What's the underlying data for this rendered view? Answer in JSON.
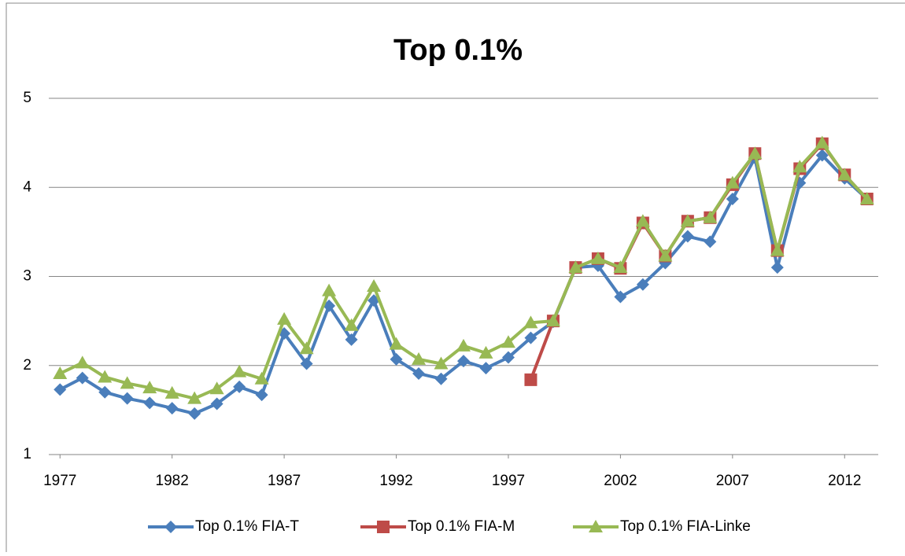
{
  "chart_data": {
    "type": "line",
    "title": "Top 0.1%",
    "x": [
      1977,
      1978,
      1979,
      1980,
      1981,
      1982,
      1983,
      1984,
      1985,
      1986,
      1987,
      1988,
      1989,
      1990,
      1991,
      1992,
      1993,
      1994,
      1995,
      1996,
      1997,
      1998,
      1999,
      2000,
      2001,
      2002,
      2003,
      2004,
      2005,
      2006,
      2007,
      2008,
      2009,
      2010,
      2011,
      2012,
      2013
    ],
    "xlim": [
      1976.5,
      2013.5
    ],
    "xticks": [
      1977,
      1982,
      1987,
      1992,
      1997,
      2002,
      2007,
      2012
    ],
    "ylim": [
      1,
      5
    ],
    "yticks": [
      1,
      2,
      3,
      4,
      5
    ],
    "grid": true,
    "legend": "bottom",
    "series": [
      {
        "name": "Top 0.1% FIA-T",
        "color": "#4a7ebb",
        "marker": "diamond",
        "values": [
          1.73,
          1.86,
          1.7,
          1.63,
          1.58,
          1.52,
          1.46,
          1.57,
          1.76,
          1.67,
          2.36,
          2.02,
          2.67,
          2.29,
          2.73,
          2.07,
          1.91,
          1.85,
          2.05,
          1.97,
          2.09,
          2.31,
          2.49,
          3.1,
          3.12,
          2.77,
          2.91,
          3.15,
          3.45,
          3.39,
          3.87,
          4.33,
          3.1,
          4.05,
          4.36,
          4.1,
          3.87
        ]
      },
      {
        "name": "Top 0.1% FIA-M",
        "color": "#be4b48",
        "marker": "square",
        "values": [
          null,
          null,
          null,
          null,
          null,
          null,
          null,
          null,
          null,
          null,
          null,
          null,
          null,
          null,
          null,
          null,
          null,
          null,
          null,
          null,
          null,
          1.84,
          2.5,
          3.1,
          3.2,
          3.09,
          3.6,
          3.23,
          3.62,
          3.66,
          4.03,
          4.38,
          3.29,
          4.21,
          4.49,
          4.14,
          3.87
        ]
      },
      {
        "name": "Top 0.1% FIA-Linke",
        "color": "#98b954",
        "marker": "triangle",
        "values": [
          1.91,
          2.03,
          1.87,
          1.8,
          1.75,
          1.69,
          1.63,
          1.74,
          1.93,
          1.85,
          2.52,
          2.19,
          2.84,
          2.45,
          2.89,
          2.24,
          2.07,
          2.02,
          2.22,
          2.14,
          2.26,
          2.48,
          2.5,
          3.1,
          3.2,
          3.1,
          3.62,
          3.23,
          3.62,
          3.66,
          4.05,
          4.38,
          3.29,
          4.23,
          4.5,
          4.14,
          3.87
        ]
      }
    ]
  }
}
